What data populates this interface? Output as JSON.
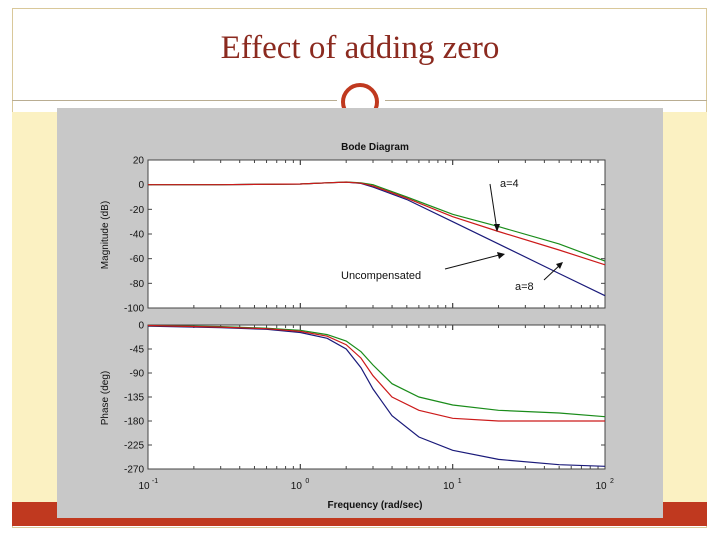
{
  "slide": {
    "title": "Effect of adding zero"
  },
  "colors": {
    "title": "#8b2a1f",
    "accent": "#c0391f",
    "band": "#fbf1c2",
    "figure_bg": "#c8c8c8",
    "uncompensated": "#1a1a7a",
    "a4": "#1a8c1a",
    "a8": "#cc1a1a"
  },
  "chart_data": [
    {
      "type": "line",
      "title": "Bode Diagram",
      "xlabel": "",
      "ylabel": "Magnitude (dB)",
      "xscale": "log",
      "xlim": [
        0.1,
        100
      ],
      "ylim": [
        -100,
        20
      ],
      "yticks": [
        "20",
        "0",
        "-20",
        "-40",
        "-60",
        "-80",
        "-100"
      ],
      "yticks_values": [
        20,
        0,
        -20,
        -40,
        -60,
        -80,
        -100
      ],
      "x": [
        0.1,
        0.3,
        1,
        1.5,
        2,
        2.5,
        3,
        5,
        10,
        20,
        50,
        100
      ],
      "series": [
        {
          "name": "Uncompensated",
          "color": "#1a1a7a",
          "values": [
            0,
            0,
            0.5,
            1.5,
            2,
            1,
            -2,
            -12,
            -30,
            -48,
            -72,
            -90
          ]
        },
        {
          "name": "a=4",
          "color": "#1a8c1a",
          "values": [
            0,
            0,
            0.5,
            1.5,
            2.2,
            1.5,
            0,
            -10,
            -24,
            -34,
            -48,
            -62
          ]
        },
        {
          "name": "a=8",
          "color": "#cc1a1a",
          "values": [
            0,
            0,
            0.5,
            1.5,
            2.1,
            1.2,
            -1,
            -11,
            -26,
            -38,
            -53,
            -65
          ]
        }
      ],
      "annotations": [
        {
          "text": "a=4"
        },
        {
          "text": "Uncompensated"
        },
        {
          "text": "a=8"
        }
      ],
      "grid": false
    },
    {
      "type": "line",
      "title": "",
      "xlabel": "Frequency (rad/sec)",
      "ylabel": "Phase (deg)",
      "xscale": "log",
      "xlim": [
        0.1,
        100
      ],
      "ylim": [
        -270,
        0
      ],
      "xticks": [
        {
          "base": "10",
          "exp": "-1"
        },
        {
          "base": "10",
          "exp": "0"
        },
        {
          "base": "10",
          "exp": "1"
        },
        {
          "base": "10",
          "exp": "2"
        }
      ],
      "xticks_values": [
        0.1,
        1,
        10,
        100
      ],
      "yticks": [
        "0",
        "-45",
        "-90",
        "-135",
        "-180",
        "-225",
        "-270"
      ],
      "yticks_values": [
        0,
        -45,
        -90,
        -135,
        -180,
        -225,
        -270
      ],
      "x": [
        0.1,
        0.3,
        0.6,
        1,
        1.5,
        2,
        2.5,
        3,
        4,
        6,
        10,
        20,
        50,
        100
      ],
      "series": [
        {
          "name": "Uncompensated",
          "color": "#1a1a7a",
          "values": [
            -2,
            -5,
            -8,
            -14,
            -25,
            -45,
            -80,
            -120,
            -170,
            -210,
            -235,
            -252,
            -262,
            -265
          ]
        },
        {
          "name": "a=4",
          "color": "#1a8c1a",
          "values": [
            -1,
            -3,
            -6,
            -10,
            -18,
            -30,
            -50,
            -75,
            -110,
            -135,
            -150,
            -160,
            -165,
            -172
          ]
        },
        {
          "name": "a=8",
          "color": "#cc1a1a",
          "values": [
            -1,
            -4,
            -7,
            -12,
            -21,
            -37,
            -62,
            -95,
            -135,
            -160,
            -175,
            -180,
            -180,
            -180
          ]
        }
      ],
      "grid": false
    }
  ]
}
